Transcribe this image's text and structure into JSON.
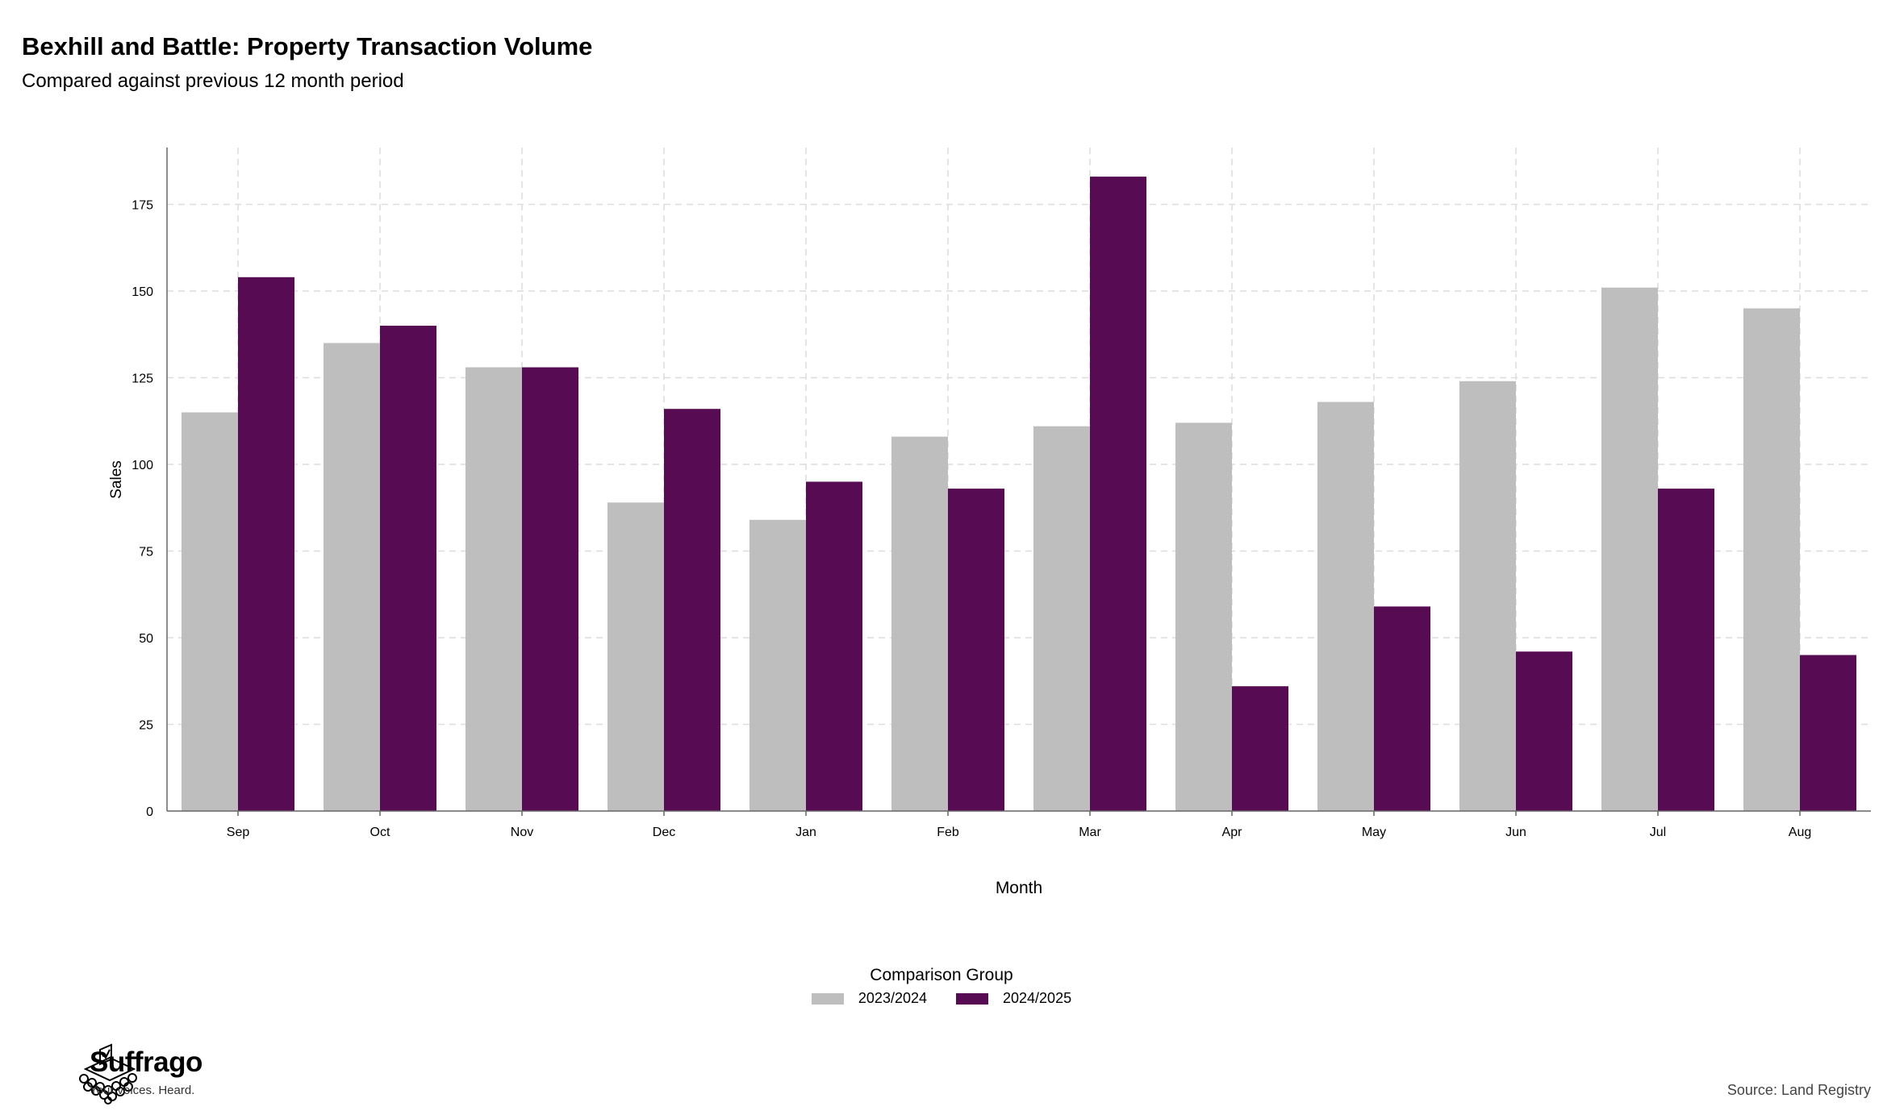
{
  "header": {
    "title": "Bexhill and Battle: Property Transaction Volume",
    "subtitle": "Compared against previous 12 month period"
  },
  "chart_data": {
    "type": "bar",
    "xlabel": "Month",
    "ylabel": "Sales",
    "ylim": [
      0,
      192
    ],
    "yticks": [
      0,
      25,
      50,
      75,
      100,
      125,
      150,
      175
    ],
    "grid": true,
    "legend_position": "bottom",
    "legend_title": "Comparison Group",
    "categories": [
      "Sep",
      "Oct",
      "Nov",
      "Dec",
      "Jan",
      "Feb",
      "Mar",
      "Apr",
      "May",
      "Jun",
      "Jul",
      "Aug"
    ],
    "series": [
      {
        "name": "2023/2024",
        "color": "#bebebe",
        "values": [
          115,
          135,
          128,
          89,
          84,
          108,
          111,
          112,
          118,
          124,
          151,
          145
        ]
      },
      {
        "name": "2024/2025",
        "color": "#560b52",
        "values": [
          154,
          140,
          128,
          116,
          95,
          93,
          183,
          36,
          59,
          46,
          93,
          45
        ]
      }
    ]
  },
  "footer": {
    "brand_name": "Suffrago",
    "brand_tagline": "Your voices. Heard.",
    "source": "Source: Land Registry"
  }
}
